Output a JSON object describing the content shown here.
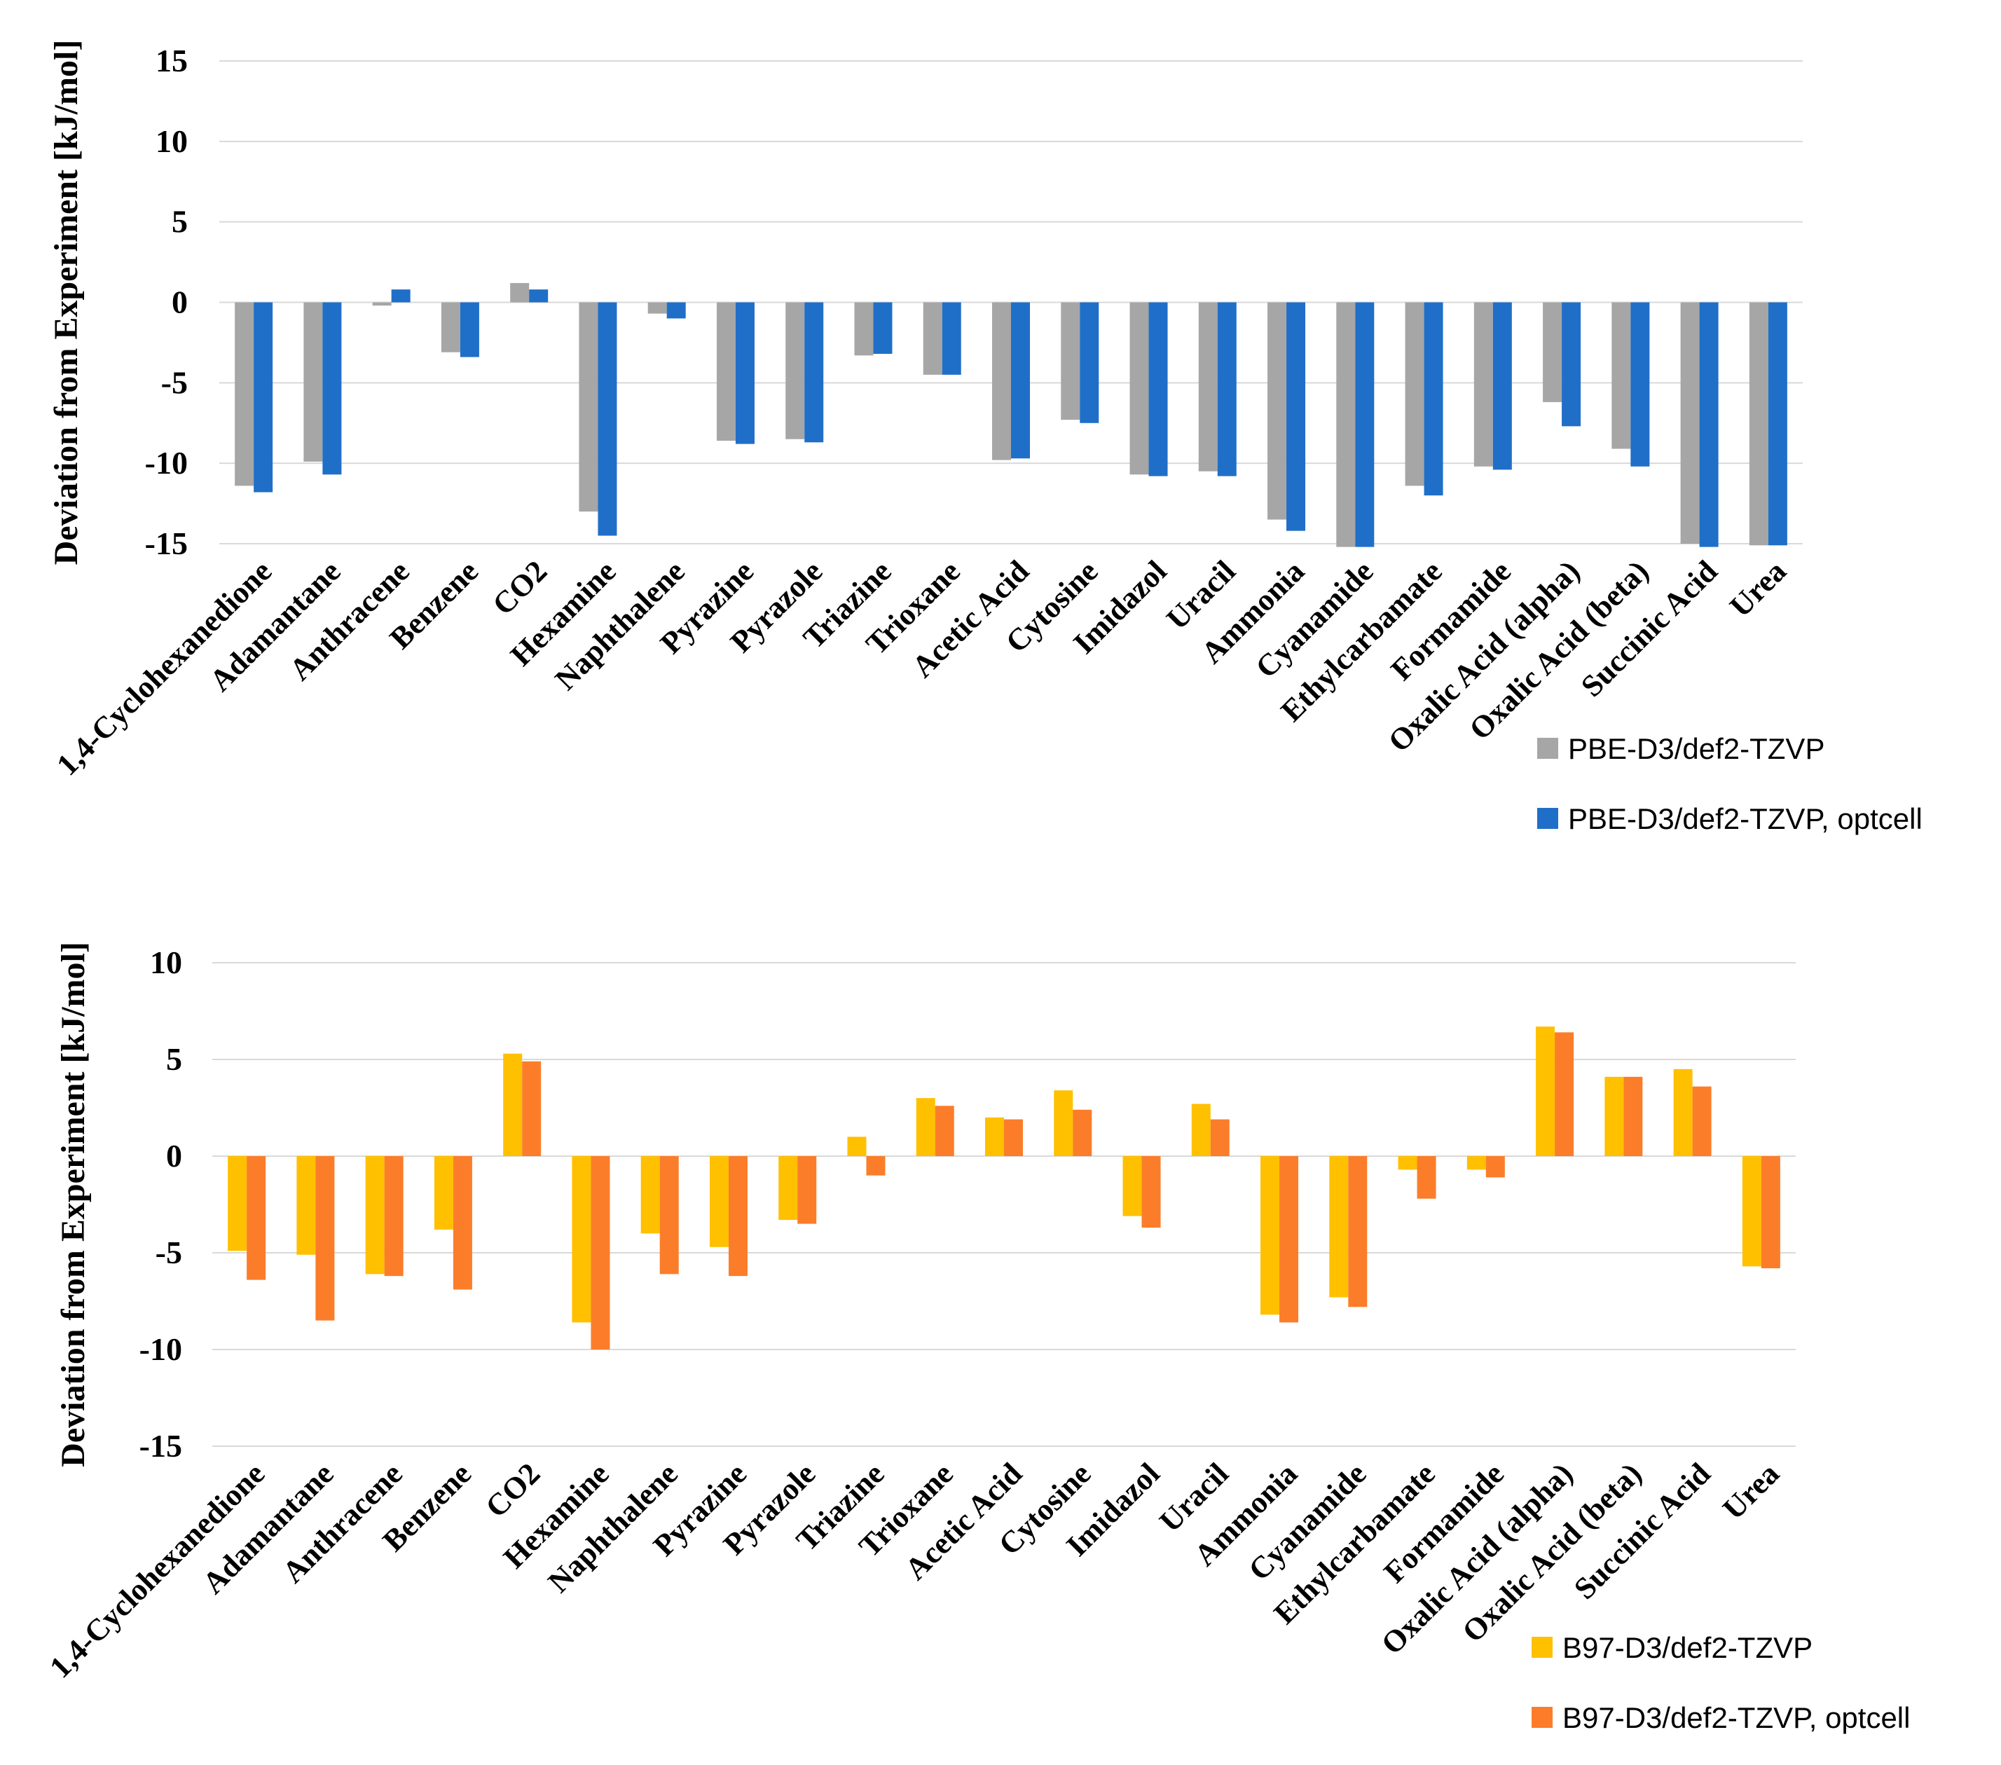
{
  "chart_data": [
    {
      "type": "bar",
      "title": "",
      "xlabel": "",
      "ylabel": "Deviation from Experiment  [kJ/mol]",
      "ylim": [
        -15,
        15
      ],
      "yticks": [
        15,
        10,
        5,
        0,
        -5,
        -10,
        -15
      ],
      "grid": true,
      "legend_position": "bottom-right",
      "categories": [
        "1,4-Cyclohexanedione",
        "Adamantane",
        "Anthracene",
        "Benzene",
        "CO2",
        "Hexamine",
        "Naphthalene",
        "Pyrazine",
        "Pyrazole",
        "Triazine",
        "Trioxane",
        "Acetic Acid",
        "Cytosine",
        "Imidazol",
        "Uracil",
        "Ammonia",
        "Cyanamide",
        "Ethylcarbamate",
        "Formamide",
        "Oxalic Acid (alpha)",
        "Oxalic Acid (beta)",
        "Succinic Acid",
        "Urea"
      ],
      "series": [
        {
          "name": "PBE-D3/def2-TZVP",
          "color": "#a6a6a6",
          "values": [
            -11.4,
            -9.9,
            -0.2,
            -3.1,
            1.2,
            -13.0,
            -0.7,
            -8.6,
            -8.5,
            -3.3,
            -4.5,
            -9.8,
            -7.3,
            -10.7,
            -10.5,
            -13.5,
            -15.2,
            -11.4,
            -10.2,
            -6.2,
            -9.1,
            -15.0,
            -15.1
          ]
        },
        {
          "name": "PBE-D3/def2-TZVP, optcell",
          "color": "#1f6fc8",
          "values": [
            -11.8,
            -10.7,
            0.8,
            -3.4,
            0.8,
            -14.5,
            -1.0,
            -8.8,
            -8.7,
            -3.2,
            -4.5,
            -9.7,
            -7.5,
            -10.8,
            -10.8,
            -14.2,
            -15.2,
            -12.0,
            -10.4,
            -7.7,
            -10.2,
            -15.2,
            -15.1
          ]
        }
      ]
    },
    {
      "type": "bar",
      "title": "",
      "xlabel": "",
      "ylabel": "Deviation from Experiment  [kJ/mol]",
      "ylim": [
        -15,
        10
      ],
      "yticks": [
        10,
        5,
        0,
        -5,
        -10,
        -15
      ],
      "grid": true,
      "legend_position": "bottom-right",
      "categories": [
        "1,4-Cyclohexanedione",
        "Adamantane",
        "Anthracene",
        "Benzene",
        "CO2",
        "Hexamine",
        "Naphthalene",
        "Pyrazine",
        "Pyrazole",
        "Triazine",
        "Trioxane",
        "Acetic Acid",
        "Cytosine",
        "Imidazol",
        "Uracil",
        "Ammonia",
        "Cyanamide",
        "Ethylcarbamate",
        "Formamide",
        "Oxalic Acid (alpha)",
        "Oxalic Acid (beta)",
        "Succinic Acid",
        "Urea"
      ],
      "series": [
        {
          "name": "B97-D3/def2-TZVP",
          "color": "#ffc000",
          "values": [
            -4.9,
            -5.1,
            -6.1,
            -3.8,
            5.3,
            -8.6,
            -4.0,
            -4.7,
            -3.3,
            1.0,
            3.0,
            2.0,
            3.4,
            -3.1,
            2.7,
            -8.2,
            -7.3,
            -0.7,
            -0.7,
            6.7,
            4.1,
            4.5,
            -5.7
          ]
        },
        {
          "name": "B97-D3/def2-TZVP, optcell",
          "color": "#fb7d2a",
          "values": [
            -6.4,
            -8.5,
            -6.2,
            -6.9,
            4.9,
            -10.0,
            -6.1,
            -6.2,
            -3.5,
            -1.0,
            2.6,
            1.9,
            2.4,
            -3.7,
            1.9,
            -8.6,
            -7.8,
            -2.2,
            -1.1,
            6.4,
            4.1,
            3.6,
            -5.8
          ]
        }
      ]
    }
  ]
}
